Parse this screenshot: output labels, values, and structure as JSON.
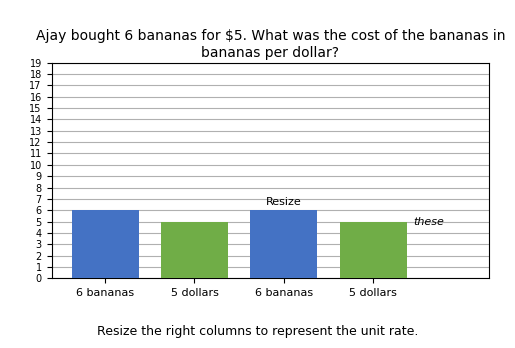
{
  "chart_data": {
    "type": "bar",
    "title": "Ajay bought 6 bananas for $5. What was the cost of the bananas in bananas per dollar?",
    "subtitle": "Resize the right columns to represent the unit rate.",
    "categories": [
      "6 bananas",
      "5 dollars",
      "6 bananas",
      "5 dollars"
    ],
    "values": [
      6,
      5,
      6,
      5
    ],
    "colors": [
      "#4472c4",
      "#70ad47",
      "#4472c4",
      "#70ad47"
    ],
    "ylim": [
      0,
      19
    ],
    "yticks": [
      0,
      1,
      2,
      3,
      4,
      5,
      6,
      7,
      8,
      9,
      10,
      11,
      12,
      13,
      14,
      15,
      16,
      17,
      18,
      19
    ],
    "grid": true,
    "annotations": [
      "Resize",
      "these"
    ]
  }
}
